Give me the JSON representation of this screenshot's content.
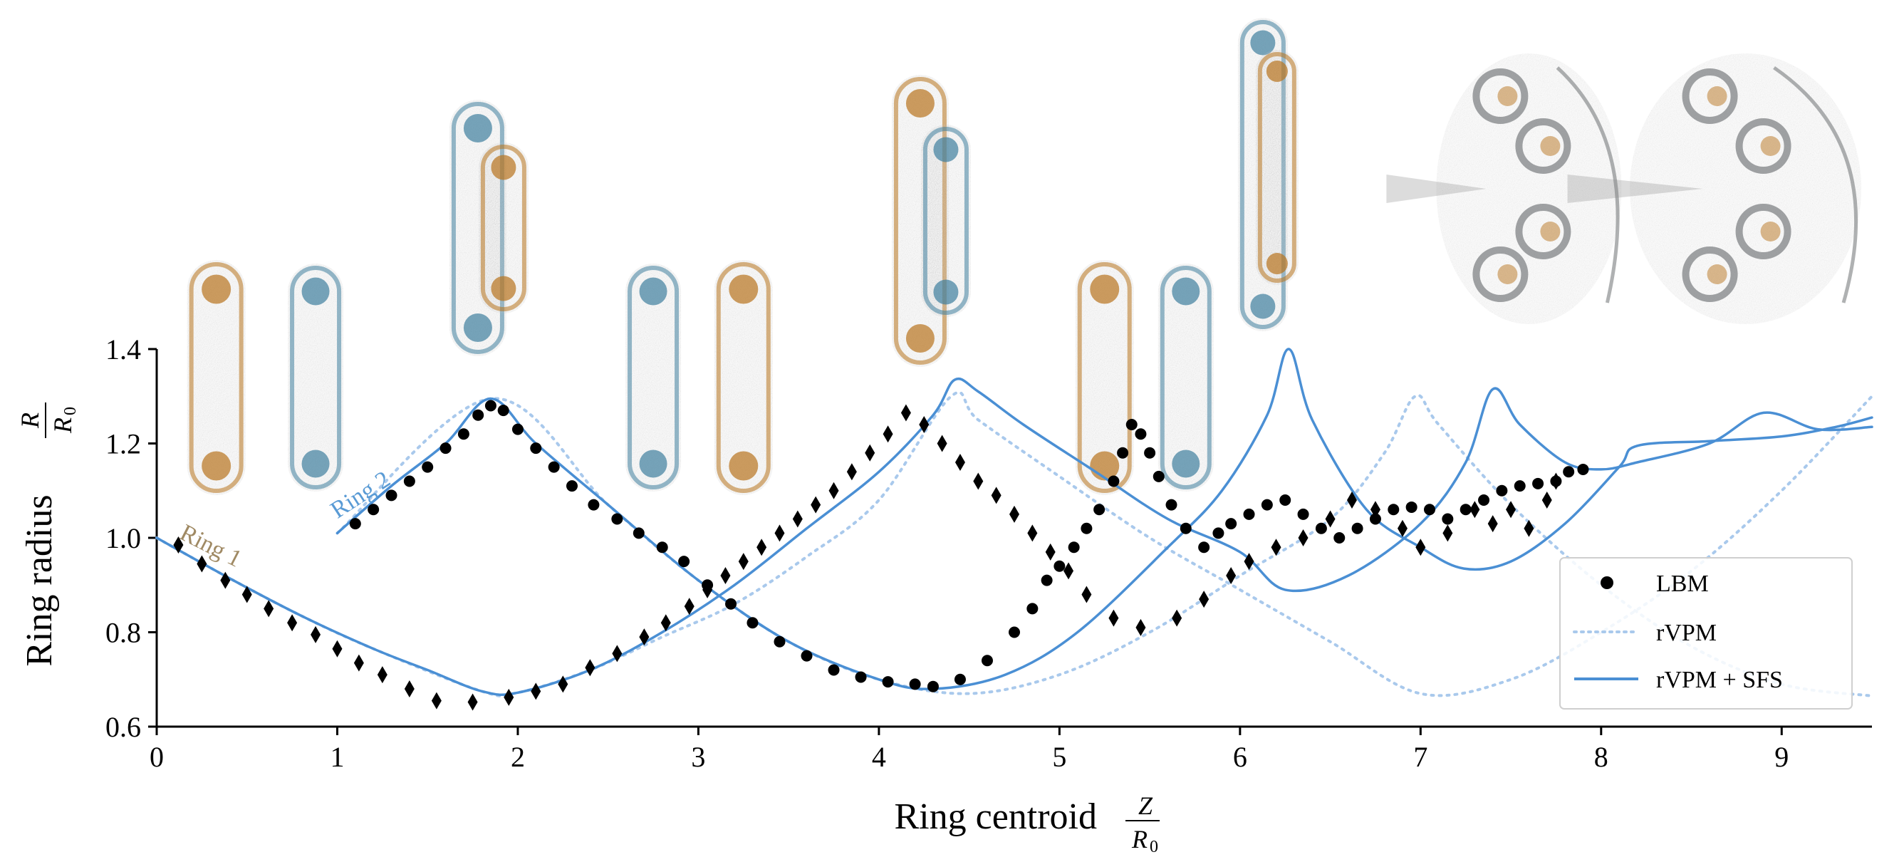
{
  "chart_data": {
    "type": "scatter",
    "xlabel": {
      "text": "Ring centroid",
      "frac_num": "Z",
      "frac_den": "R",
      "frac_den_sub": "0"
    },
    "ylabel": {
      "text": "Ring radius",
      "frac_num": "R",
      "frac_den": "R",
      "frac_den_sub": "0"
    },
    "xlim": [
      0,
      9.5
    ],
    "ylim": [
      0.6,
      1.4
    ],
    "xticks": [
      "0",
      "1",
      "2",
      "3",
      "4",
      "5",
      "6",
      "7",
      "8",
      "9"
    ],
    "yticks": [
      "0.6",
      "0.8",
      "1.0",
      "1.2",
      "1.4"
    ],
    "grid": false,
    "legend_position": "lower-right",
    "legend": [
      {
        "label": "LBM",
        "style": "marker"
      },
      {
        "label": "rVPM",
        "style": "dotted"
      },
      {
        "label": "rVPM + SFS",
        "style": "solid"
      }
    ],
    "annotations": [
      {
        "text": "Ring 1",
        "x": 0.12,
        "y": 1.0,
        "color": "#a08a64",
        "rotation": 27
      },
      {
        "text": "Ring 2",
        "x": 1.0,
        "y": 1.04,
        "color": "#5a9bd5",
        "rotation": -33
      }
    ],
    "colors": {
      "sfs": "#4a8fd4",
      "rvpm": "#a9c9ec",
      "lbm": "#000000",
      "ring1": "#a08a64",
      "ring2": "#5a9bd5"
    },
    "series": [
      {
        "name": "rVPM + SFS",
        "ring": 1,
        "style": "solid",
        "points": [
          [
            0,
            1.0
          ],
          [
            0.4,
            0.915
          ],
          [
            0.8,
            0.835
          ],
          [
            1.2,
            0.765
          ],
          [
            1.5,
            0.72
          ],
          [
            1.8,
            0.675
          ],
          [
            2.0,
            0.672
          ],
          [
            2.4,
            0.72
          ],
          [
            2.8,
            0.8
          ],
          [
            3.2,
            0.9
          ],
          [
            3.6,
            1.02
          ],
          [
            4.0,
            1.14
          ],
          [
            4.3,
            1.26
          ],
          [
            4.42,
            1.335
          ],
          [
            4.55,
            1.31
          ],
          [
            4.8,
            1.24
          ],
          [
            5.2,
            1.14
          ],
          [
            5.6,
            1.04
          ],
          [
            6.0,
            0.97
          ],
          [
            6.25,
            0.89
          ],
          [
            6.6,
            0.92
          ],
          [
            7.0,
            1.03
          ],
          [
            7.25,
            1.16
          ],
          [
            7.4,
            1.315
          ],
          [
            7.55,
            1.24
          ],
          [
            7.8,
            1.16
          ],
          [
            8.0,
            1.145
          ],
          [
            8.2,
            1.16
          ],
          [
            8.6,
            1.2
          ],
          [
            8.9,
            1.265
          ],
          [
            9.2,
            1.23
          ],
          [
            9.5,
            1.235
          ]
        ]
      },
      {
        "name": "rVPM + SFS",
        "ring": 2,
        "style": "solid",
        "points": [
          [
            1.0,
            1.01
          ],
          [
            1.3,
            1.11
          ],
          [
            1.6,
            1.2
          ],
          [
            1.85,
            1.295
          ],
          [
            2.1,
            1.2
          ],
          [
            2.5,
            1.07
          ],
          [
            3.0,
            0.91
          ],
          [
            3.5,
            0.78
          ],
          [
            4.0,
            0.7
          ],
          [
            4.3,
            0.68
          ],
          [
            4.7,
            0.71
          ],
          [
            5.1,
            0.8
          ],
          [
            5.6,
            0.98
          ],
          [
            5.9,
            1.1
          ],
          [
            6.15,
            1.26
          ],
          [
            6.27,
            1.4
          ],
          [
            6.4,
            1.25
          ],
          [
            6.7,
            1.06
          ],
          [
            7.0,
            0.98
          ],
          [
            7.24,
            0.935
          ],
          [
            7.5,
            0.95
          ],
          [
            7.8,
            1.03
          ],
          [
            8.1,
            1.15
          ],
          [
            8.2,
            1.195
          ],
          [
            8.6,
            1.205
          ],
          [
            9.0,
            1.215
          ],
          [
            9.3,
            1.235
          ],
          [
            9.5,
            1.255
          ]
        ]
      },
      {
        "name": "rVPM",
        "ring": 1,
        "style": "dotted",
        "points": [
          [
            0,
            1.0
          ],
          [
            0.4,
            0.915
          ],
          [
            0.8,
            0.835
          ],
          [
            1.2,
            0.765
          ],
          [
            1.8,
            0.675
          ],
          [
            2.0,
            0.672
          ],
          [
            2.4,
            0.72
          ],
          [
            2.8,
            0.79
          ],
          [
            3.2,
            0.86
          ],
          [
            3.6,
            0.96
          ],
          [
            4.0,
            1.08
          ],
          [
            4.4,
            1.3
          ],
          [
            4.55,
            1.25
          ],
          [
            5.0,
            1.13
          ],
          [
            5.5,
            1.0
          ],
          [
            6.0,
            0.89
          ],
          [
            6.5,
            0.78
          ],
          [
            7.0,
            0.67
          ],
          [
            7.5,
            0.7
          ],
          [
            8.0,
            0.8
          ],
          [
            8.5,
            0.93
          ],
          [
            9.0,
            1.1
          ],
          [
            9.5,
            1.3
          ]
        ]
      },
      {
        "name": "rVPM",
        "ring": 2,
        "style": "dotted",
        "points": [
          [
            1.0,
            1.01
          ],
          [
            1.85,
            1.295
          ],
          [
            2.5,
            1.07
          ],
          [
            3.0,
            0.91
          ],
          [
            3.5,
            0.78
          ],
          [
            4.0,
            0.7
          ],
          [
            4.5,
            0.67
          ],
          [
            5.0,
            0.71
          ],
          [
            5.5,
            0.8
          ],
          [
            6.0,
            0.92
          ],
          [
            6.5,
            1.04
          ],
          [
            6.8,
            1.18
          ],
          [
            6.97,
            1.3
          ],
          [
            7.1,
            1.24
          ],
          [
            7.5,
            1.07
          ],
          [
            8.0,
            0.9
          ],
          [
            8.5,
            0.77
          ],
          [
            9.0,
            0.69
          ],
          [
            9.5,
            0.665
          ]
        ]
      },
      {
        "name": "LBM",
        "ring": 1,
        "marker": "diamond",
        "points": [
          [
            0.12,
            0.985
          ],
          [
            0.25,
            0.945
          ],
          [
            0.38,
            0.91
          ],
          [
            0.5,
            0.88
          ],
          [
            0.62,
            0.85
          ],
          [
            0.75,
            0.82
          ],
          [
            0.88,
            0.795
          ],
          [
            1.0,
            0.765
          ],
          [
            1.12,
            0.735
          ],
          [
            1.25,
            0.71
          ],
          [
            1.4,
            0.68
          ],
          [
            1.55,
            0.655
          ],
          [
            1.75,
            0.652
          ],
          [
            1.95,
            0.662
          ],
          [
            2.1,
            0.675
          ],
          [
            2.25,
            0.69
          ],
          [
            2.4,
            0.725
          ],
          [
            2.55,
            0.755
          ],
          [
            2.7,
            0.79
          ],
          [
            2.82,
            0.82
          ],
          [
            2.95,
            0.855
          ],
          [
            3.05,
            0.89
          ],
          [
            3.15,
            0.92
          ],
          [
            3.25,
            0.95
          ],
          [
            3.35,
            0.98
          ],
          [
            3.45,
            1.01
          ],
          [
            3.55,
            1.04
          ],
          [
            3.65,
            1.07
          ],
          [
            3.75,
            1.1
          ],
          [
            3.85,
            1.14
          ],
          [
            3.95,
            1.18
          ],
          [
            4.05,
            1.22
          ],
          [
            4.15,
            1.265
          ],
          [
            4.25,
            1.24
          ],
          [
            4.35,
            1.2
          ],
          [
            4.45,
            1.16
          ],
          [
            4.55,
            1.12
          ],
          [
            4.65,
            1.09
          ],
          [
            4.75,
            1.05
          ],
          [
            4.85,
            1.01
          ],
          [
            4.95,
            0.97
          ],
          [
            5.05,
            0.93
          ],
          [
            5.15,
            0.88
          ],
          [
            5.3,
            0.83
          ],
          [
            5.45,
            0.81
          ],
          [
            5.65,
            0.83
          ],
          [
            5.8,
            0.87
          ],
          [
            5.95,
            0.92
          ],
          [
            6.05,
            0.95
          ],
          [
            6.2,
            0.98
          ],
          [
            6.35,
            1.0
          ],
          [
            6.5,
            1.04
          ],
          [
            6.62,
            1.08
          ],
          [
            6.75,
            1.06
          ],
          [
            6.9,
            1.02
          ],
          [
            7.0,
            0.98
          ],
          [
            7.15,
            1.01
          ],
          [
            7.3,
            1.06
          ],
          [
            7.4,
            1.03
          ],
          [
            7.5,
            1.06
          ],
          [
            7.6,
            1.02
          ],
          [
            7.7,
            1.08
          ],
          [
            7.75,
            1.12
          ]
        ]
      },
      {
        "name": "LBM",
        "ring": 2,
        "marker": "circle",
        "points": [
          [
            1.1,
            1.03
          ],
          [
            1.2,
            1.06
          ],
          [
            1.3,
            1.09
          ],
          [
            1.4,
            1.12
          ],
          [
            1.5,
            1.15
          ],
          [
            1.6,
            1.19
          ],
          [
            1.7,
            1.22
          ],
          [
            1.78,
            1.26
          ],
          [
            1.85,
            1.28
          ],
          [
            1.92,
            1.27
          ],
          [
            2.0,
            1.23
          ],
          [
            2.1,
            1.19
          ],
          [
            2.2,
            1.15
          ],
          [
            2.3,
            1.11
          ],
          [
            2.42,
            1.07
          ],
          [
            2.55,
            1.04
          ],
          [
            2.67,
            1.01
          ],
          [
            2.8,
            0.98
          ],
          [
            2.92,
            0.95
          ],
          [
            3.05,
            0.9
          ],
          [
            3.18,
            0.86
          ],
          [
            3.3,
            0.82
          ],
          [
            3.45,
            0.78
          ],
          [
            3.6,
            0.75
          ],
          [
            3.75,
            0.72
          ],
          [
            3.9,
            0.705
          ],
          [
            4.05,
            0.695
          ],
          [
            4.2,
            0.69
          ],
          [
            4.3,
            0.685
          ],
          [
            4.45,
            0.7
          ],
          [
            4.6,
            0.74
          ],
          [
            4.75,
            0.8
          ],
          [
            4.85,
            0.85
          ],
          [
            4.93,
            0.91
          ],
          [
            5.0,
            0.94
          ],
          [
            5.08,
            0.98
          ],
          [
            5.15,
            1.02
          ],
          [
            5.22,
            1.06
          ],
          [
            5.3,
            1.12
          ],
          [
            5.35,
            1.18
          ],
          [
            5.4,
            1.24
          ],
          [
            5.45,
            1.22
          ],
          [
            5.5,
            1.18
          ],
          [
            5.55,
            1.13
          ],
          [
            5.62,
            1.07
          ],
          [
            5.7,
            1.02
          ],
          [
            5.8,
            0.98
          ],
          [
            5.88,
            1.01
          ],
          [
            5.95,
            1.03
          ],
          [
            6.05,
            1.05
          ],
          [
            6.15,
            1.07
          ],
          [
            6.25,
            1.08
          ],
          [
            6.35,
            1.05
          ],
          [
            6.45,
            1.02
          ],
          [
            6.55,
            1.0
          ],
          [
            6.65,
            1.02
          ],
          [
            6.75,
            1.04
          ],
          [
            6.85,
            1.06
          ],
          [
            6.95,
            1.065
          ],
          [
            7.05,
            1.06
          ],
          [
            7.15,
            1.04
          ],
          [
            7.25,
            1.06
          ],
          [
            7.35,
            1.08
          ],
          [
            7.45,
            1.1
          ],
          [
            7.55,
            1.11
          ],
          [
            7.65,
            1.115
          ],
          [
            7.75,
            1.12
          ],
          [
            7.82,
            1.14
          ],
          [
            7.9,
            1.145
          ]
        ]
      }
    ],
    "snapshots": [
      {
        "name": "ring-snapshot-1",
        "x": 0.33,
        "style": "orange-ring"
      },
      {
        "name": "ring-snapshot-2",
        "x": 0.88,
        "style": "blue-ring"
      },
      {
        "name": "ring-snapshot-3",
        "x": 1.85,
        "style": "pair-outer-blue"
      },
      {
        "name": "ring-snapshot-4",
        "x": 2.75,
        "style": "blue-ring"
      },
      {
        "name": "ring-snapshot-5",
        "x": 3.25,
        "style": "orange-ring"
      },
      {
        "name": "ring-snapshot-6",
        "x": 4.3,
        "style": "pair-outer-orange"
      },
      {
        "name": "ring-snapshot-7",
        "x": 5.25,
        "style": "orange-ring"
      },
      {
        "name": "ring-snapshot-8",
        "x": 5.7,
        "style": "blue-ring"
      },
      {
        "name": "ring-snapshot-9",
        "x": 6.15,
        "style": "pair-tall"
      },
      {
        "name": "ring-snapshot-10",
        "x": 7.6,
        "style": "turbulent"
      },
      {
        "name": "ring-snapshot-11",
        "x": 8.8,
        "style": "turbulent-wide"
      }
    ]
  }
}
